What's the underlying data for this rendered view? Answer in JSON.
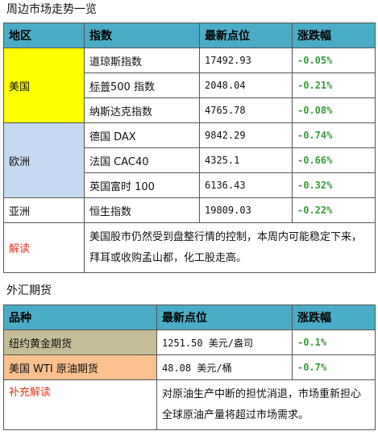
{
  "section1": {
    "title": "周边市场走势一览",
    "headers": [
      "地区",
      "指数",
      "最新点位",
      "涨跌幅"
    ],
    "regions": {
      "us": "美国",
      "eu": "欧洲",
      "asia": "亚洲"
    },
    "rows": [
      {
        "index": "道琼斯指数",
        "value": "17492.93",
        "change": "-0.05%"
      },
      {
        "index_a": "标普",
        "index_b": "500 指数",
        "value": "2048.04",
        "change": "-0.21%"
      },
      {
        "index": "纳斯达克指数",
        "value": "4765.78",
        "change": "-0.08%"
      },
      {
        "index": "德国 DAX",
        "value": "9842.29",
        "change": "-0.74%"
      },
      {
        "index": "法国 CAC40",
        "value": "4325.1",
        "change": "-0.66%"
      },
      {
        "index": "英国富时 100",
        "value": "6136.43",
        "change": "-0.32%"
      },
      {
        "index": "恒生指数",
        "value": "19809.03",
        "change": "-0.22%"
      }
    ],
    "commentary_label": "解读",
    "commentary": "美国股市仍然受到盘整行情的控制，本周内可能稳定下来，拜耳或收购孟山都，化工股走高。"
  },
  "section2": {
    "title": "外汇期货",
    "headers": [
      "品种",
      "最新点位",
      "涨跌幅"
    ],
    "rows": [
      {
        "name": "纽约黄金期货",
        "value": "1251.50 美元/盎司",
        "change": "-0.1%"
      },
      {
        "name": "美国 WTI 原油期货",
        "value": "48.08 美元/桶",
        "change": "-0.7%"
      }
    ],
    "commentary_label": "补充解读",
    "commentary": "对原油生产中断的担忧消退，市场重新担心全球原油产量将超过市场需求。"
  },
  "colors": {
    "header": "#4bacc6",
    "us_region": "#ffff00",
    "eu_region": "#c5d9f1",
    "gold_row": "#c4bd97",
    "oil_row": "#fac090",
    "negative_change": "#3a9a3a",
    "label_red": "#e8341c"
  }
}
